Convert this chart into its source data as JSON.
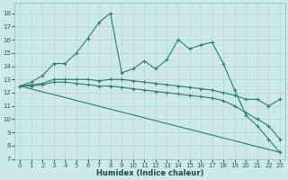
{
  "xlabel": "Humidex (Indice chaleur)",
  "background_color": "#cce8e8",
  "grid_color": "#b8d8d8",
  "line_color": "#2e7d6e",
  "xlim": [
    -0.5,
    23.5
  ],
  "ylim": [
    7,
    18.8
  ],
  "yticks": [
    7,
    8,
    9,
    10,
    11,
    12,
    13,
    14,
    15,
    16,
    17,
    18
  ],
  "xticks": [
    0,
    1,
    2,
    3,
    4,
    5,
    6,
    7,
    8,
    9,
    10,
    11,
    12,
    13,
    14,
    15,
    16,
    17,
    18,
    19,
    20,
    21,
    22,
    23
  ],
  "series": [
    {
      "x": [
        0,
        1,
        2,
        3,
        4,
        5,
        6,
        7,
        8,
        9,
        10,
        11,
        12,
        13,
        14,
        15,
        16,
        17,
        18,
        19,
        20,
        21,
        22,
        23
      ],
      "y": [
        12.5,
        12.8,
        13.3,
        14.2,
        14.2,
        15.0,
        16.1,
        17.3,
        18.0,
        13.5,
        13.8,
        14.4,
        13.8,
        14.5,
        16.0,
        15.3,
        15.6,
        15.8,
        14.2,
        12.2,
        10.3,
        9.5,
        8.5,
        7.5
      ],
      "marker": true,
      "linestyle": "-"
    },
    {
      "x": [
        0,
        1,
        2,
        3,
        4,
        5,
        6,
        7,
        8,
        9,
        10,
        11,
        12,
        13,
        14,
        15,
        16,
        17,
        18,
        19,
        20,
        21,
        22,
        23
      ],
      "y": [
        12.5,
        12.6,
        12.7,
        13.0,
        13.0,
        13.0,
        13.0,
        12.9,
        13.0,
        13.0,
        12.9,
        12.8,
        12.7,
        12.6,
        12.5,
        12.4,
        12.3,
        12.2,
        12.0,
        11.8,
        11.5,
        11.5,
        11.0,
        11.5
      ],
      "marker": true,
      "linestyle": "-"
    },
    {
      "x": [
        0,
        1,
        2,
        3,
        4,
        5,
        6,
        7,
        8,
        9,
        10,
        11,
        12,
        13,
        14,
        15,
        16,
        17,
        18,
        19,
        20,
        21,
        22,
        23
      ],
      "y": [
        12.5,
        12.5,
        12.6,
        12.8,
        12.8,
        12.7,
        12.6,
        12.5,
        12.5,
        12.4,
        12.3,
        12.2,
        12.1,
        12.0,
        11.9,
        11.8,
        11.7,
        11.6,
        11.4,
        11.0,
        10.5,
        10.0,
        9.5,
        8.5
      ],
      "marker": true,
      "linestyle": "-"
    },
    {
      "x": [
        0,
        23
      ],
      "y": [
        12.5,
        7.5
      ],
      "marker": false,
      "linestyle": "-"
    }
  ]
}
